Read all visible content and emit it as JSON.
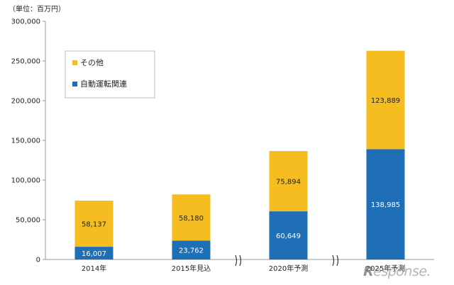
{
  "unit_label": "（単位：百万円）",
  "watermark": "Response.",
  "chart_data": {
    "type": "bar",
    "stacked": true,
    "categories": [
      "2014年",
      "2015年見込",
      "2020年予測",
      "2025年予測"
    ],
    "series": [
      {
        "name": "自動運転関連",
        "values": [
          16007,
          23762,
          60649,
          138985
        ],
        "color": "#1e6fb5"
      },
      {
        "name": "その他",
        "values": [
          58137,
          58180,
          75894,
          123889
        ],
        "color": "#f6bd20"
      }
    ],
    "value_labels": [
      [
        "16,007",
        "23,762",
        "60,649",
        "138,985"
      ],
      [
        "58,137",
        "58,180",
        "75,894",
        "123,889"
      ]
    ],
    "ylim": [
      0,
      300000
    ],
    "yticks": [
      0,
      50000,
      100000,
      150000,
      200000,
      250000,
      300000
    ],
    "ytick_labels": [
      "0",
      "50,000",
      "100,000",
      "150,000",
      "200,000",
      "250,000",
      "300,000"
    ],
    "axis_break_marks": [
      "between 2015年見込 and 2020年予測",
      "between 2020年予測 and 2025年予測"
    ],
    "legend_position": "top-left",
    "grid": false
  }
}
